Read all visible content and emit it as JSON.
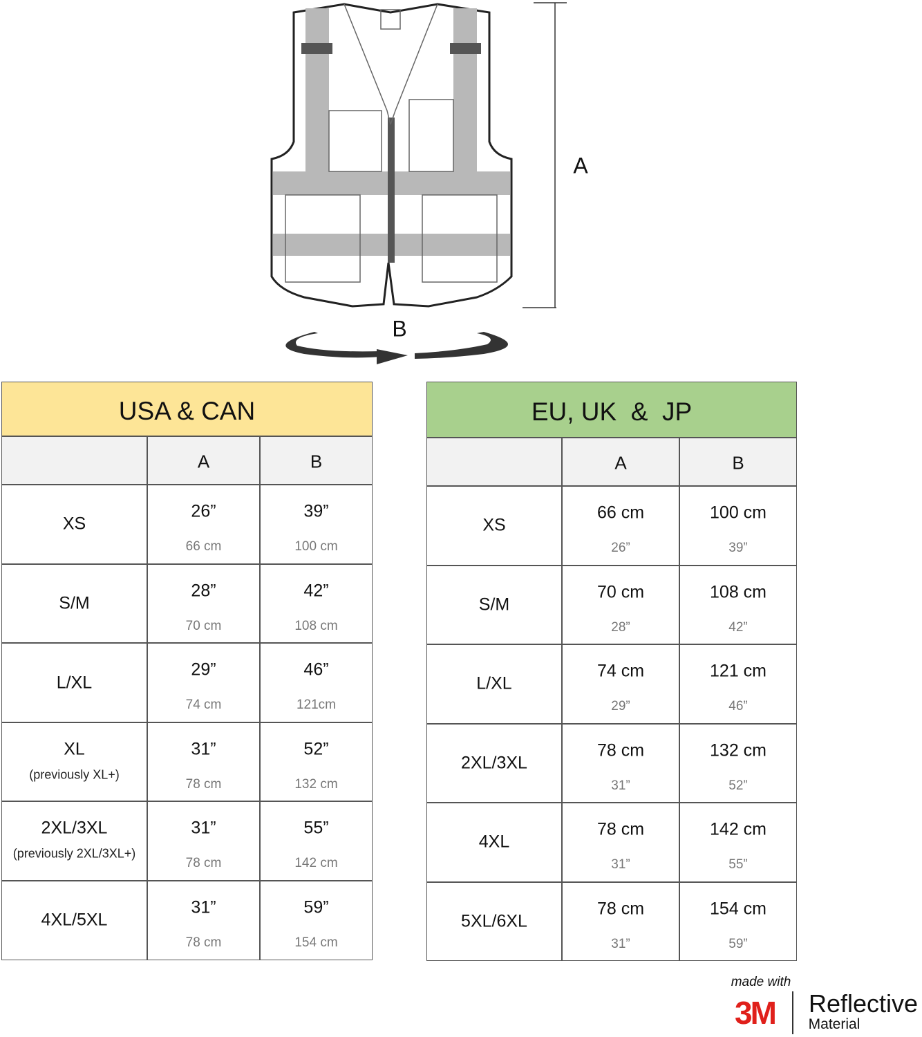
{
  "diagram": {
    "height_label": "A",
    "width_label": "B"
  },
  "tables": [
    {
      "title": "USA & CAN",
      "columns": [
        "A",
        "B"
      ],
      "rows": [
        {
          "size": "XS",
          "a": "26”",
          "a_alt": "66 cm",
          "b": "39”",
          "b_alt": "100 cm"
        },
        {
          "size": "S/M",
          "a": "28”",
          "a_alt": "70 cm",
          "b": "42”",
          "b_alt": "108 cm"
        },
        {
          "size": "L/XL",
          "a": "29”",
          "a_alt": "74 cm",
          "b": "46”",
          "b_alt": "121cm"
        },
        {
          "size": "XL",
          "note": "(previously XL+)",
          "a": "31”",
          "a_alt": "78 cm",
          "b": "52”",
          "b_alt": "132 cm"
        },
        {
          "size": "2XL/3XL",
          "note": "(previously 2XL/3XL+)",
          "a": "31”",
          "a_alt": "78 cm",
          "b": "55”",
          "b_alt": "142 cm"
        },
        {
          "size": "4XL/5XL",
          "a": "31”",
          "a_alt": "78 cm",
          "b": "59”",
          "b_alt": "154 cm"
        }
      ]
    },
    {
      "title": "EU, UK  &  JP",
      "columns": [
        "A",
        "B"
      ],
      "rows": [
        {
          "size": "XS",
          "a": "66 cm",
          "a_alt": "26”",
          "b": "100 cm",
          "b_alt": "39”"
        },
        {
          "size": "S/M",
          "a": "70 cm",
          "a_alt": "28”",
          "b": "108 cm",
          "b_alt": "42”"
        },
        {
          "size": "L/XL",
          "a": "74 cm",
          "a_alt": "29”",
          "b": "121 cm",
          "b_alt": "46”"
        },
        {
          "size": "2XL/3XL",
          "a": "78 cm",
          "a_alt": "31”",
          "b": "132 cm",
          "b_alt": "52”"
        },
        {
          "size": "4XL",
          "a": "78 cm",
          "a_alt": "31”",
          "b": "142 cm",
          "b_alt": "55”"
        },
        {
          "size": "5XL/6XL",
          "a": "78 cm",
          "a_alt": "31”",
          "b": "154 cm",
          "b_alt": "59”"
        }
      ]
    }
  ],
  "footer": {
    "made_with": "made with",
    "brand": "3M",
    "product": "Reflective",
    "product_sub": "Material"
  }
}
